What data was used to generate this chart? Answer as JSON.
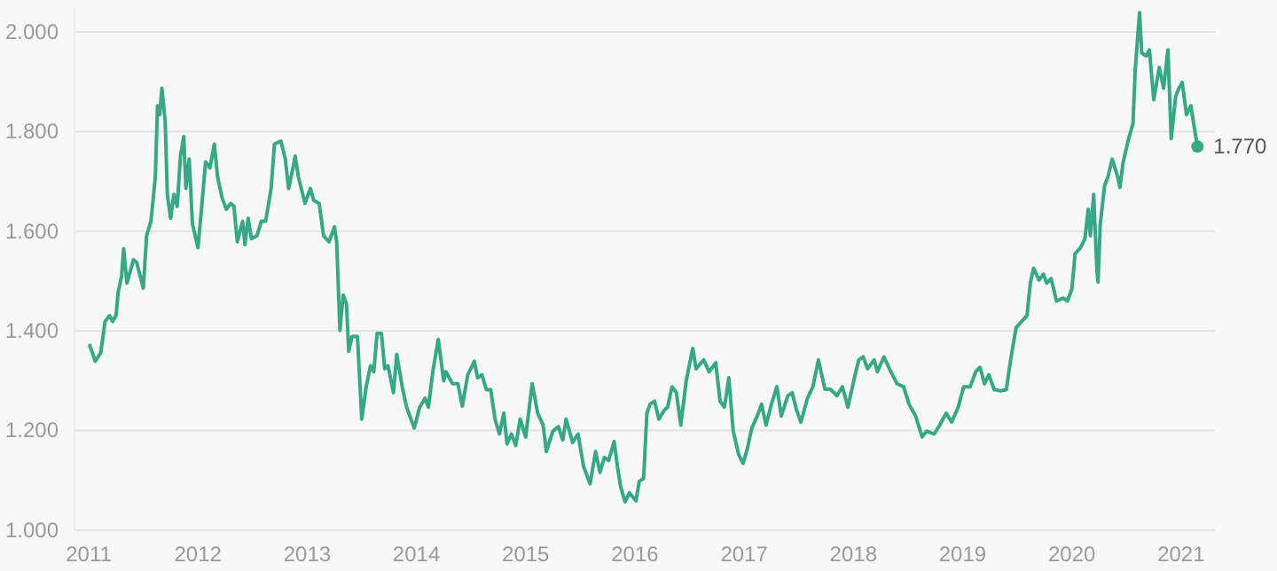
{
  "chart_data": {
    "type": "line",
    "color": "#35a985",
    "grid": "y",
    "marker": "none",
    "line_style": "solid",
    "xlim": [
      2010.87,
      2021.31
    ],
    "xticks": [
      2011,
      2012,
      2013,
      2014,
      2015,
      2016,
      2017,
      2018,
      2019,
      2020,
      2021
    ],
    "ylim": [
      1,
      2.05
    ],
    "yticks": [
      {
        "value": 1,
        "label": "1.000"
      },
      {
        "value": 1.2,
        "label": "1.200"
      },
      {
        "value": 1.4,
        "label": "1.400"
      },
      {
        "value": 1.6,
        "label": "1.600"
      },
      {
        "value": 1.8,
        "label": "1.800"
      },
      {
        "value": 2,
        "label": "2.000"
      }
    ],
    "annotations": [
      {
        "text": "1.770",
        "x": 2021.15,
        "y": 1.77
      }
    ],
    "x": [
      2011.01,
      2011.06,
      2011.11,
      2011.15,
      2011.19,
      2011.22,
      2011.25,
      2011.27,
      2011.3,
      2011.32,
      2011.35,
      2011.41,
      2011.44,
      2011.5,
      2011.53,
      2011.57,
      2011.61,
      2011.63,
      2011.65,
      2011.67,
      2011.7,
      2011.72,
      2011.75,
      2011.78,
      2011.81,
      2011.84,
      2011.87,
      2011.89,
      2011.92,
      2011.95,
      2011.97,
      2012.0,
      2012.03,
      2012.07,
      2012.11,
      2012.15,
      2012.18,
      2012.22,
      2012.26,
      2012.3,
      2012.33,
      2012.36,
      2012.41,
      2012.43,
      2012.46,
      2012.49,
      2012.54,
      2012.58,
      2012.62,
      2012.67,
      2012.7,
      2012.76,
      2012.8,
      2012.83,
      2012.87,
      2012.89,
      2012.92,
      2012.98,
      2013.03,
      2013.06,
      2013.11,
      2013.15,
      2013.2,
      2013.25,
      2013.27,
      2013.3,
      2013.33,
      2013.36,
      2013.38,
      2013.41,
      2013.46,
      2013.5,
      2013.54,
      2013.58,
      2013.61,
      2013.64,
      2013.68,
      2013.71,
      2013.74,
      2013.79,
      2013.82,
      2013.87,
      2013.91,
      2013.98,
      2014.03,
      2014.08,
      2014.11,
      2014.15,
      2014.2,
      2014.25,
      2014.27,
      2014.33,
      2014.38,
      2014.42,
      2014.47,
      2014.53,
      2014.56,
      2014.6,
      2014.64,
      2014.68,
      2014.72,
      2014.76,
      2014.8,
      2014.83,
      2014.87,
      2014.91,
      2014.95,
      2015.0,
      2015.06,
      2015.11,
      2015.16,
      2015.19,
      2015.25,
      2015.3,
      2015.34,
      2015.37,
      2015.43,
      2015.48,
      2015.53,
      2015.59,
      2015.64,
      2015.68,
      2015.72,
      2015.76,
      2015.81,
      2015.84,
      2015.87,
      2015.91,
      2015.95,
      2016.01,
      2016.04,
      2016.08,
      2016.11,
      2016.14,
      2016.18,
      2016.22,
      2016.27,
      2016.3,
      2016.34,
      2016.38,
      2016.42,
      2016.47,
      2016.53,
      2016.56,
      2016.63,
      2016.68,
      2016.74,
      2016.78,
      2016.82,
      2016.86,
      2016.9,
      2016.95,
      2016.99,
      2017.03,
      2017.07,
      2017.12,
      2017.16,
      2017.2,
      2017.25,
      2017.3,
      2017.34,
      2017.4,
      2017.44,
      2017.48,
      2017.52,
      2017.58,
      2017.63,
      2017.68,
      2017.74,
      2017.79,
      2017.85,
      2017.9,
      2017.95,
      2018.01,
      2018.05,
      2018.09,
      2018.13,
      2018.19,
      2018.22,
      2018.28,
      2018.33,
      2018.4,
      2018.46,
      2018.51,
      2018.57,
      2018.63,
      2018.67,
      2018.74,
      2018.79,
      2018.85,
      2018.9,
      2018.96,
      2019.01,
      2019.07,
      2019.12,
      2019.16,
      2019.2,
      2019.24,
      2019.29,
      2019.35,
      2019.4,
      2019.44,
      2019.49,
      2019.54,
      2019.59,
      2019.62,
      2019.65,
      2019.7,
      2019.74,
      2019.77,
      2019.81,
      2019.86,
      2019.92,
      2019.96,
      2020.0,
      2020.03,
      2020.08,
      2020.12,
      2020.15,
      2020.17,
      2020.2,
      2020.23,
      2020.24,
      2020.26,
      2020.3,
      2020.33,
      2020.37,
      2020.42,
      2020.44,
      2020.47,
      2020.52,
      2020.56,
      2020.58,
      2020.62,
      2020.64,
      2020.68,
      2020.71,
      2020.75,
      2020.8,
      2020.84,
      2020.88,
      2020.91,
      2020.95,
      2020.98,
      2021.01,
      2021.05,
      2021.09,
      2021.12,
      2021.15
    ],
    "values": [
      1.371,
      1.339,
      1.356,
      1.419,
      1.431,
      1.419,
      1.431,
      1.478,
      1.508,
      1.565,
      1.496,
      1.543,
      1.537,
      1.486,
      1.591,
      1.62,
      1.709,
      1.852,
      1.834,
      1.887,
      1.822,
      1.674,
      1.626,
      1.674,
      1.65,
      1.751,
      1.79,
      1.686,
      1.745,
      1.614,
      1.596,
      1.567,
      1.638,
      1.739,
      1.727,
      1.775,
      1.709,
      1.668,
      1.644,
      1.656,
      1.65,
      1.579,
      1.62,
      1.573,
      1.626,
      1.585,
      1.591,
      1.62,
      1.62,
      1.686,
      1.775,
      1.781,
      1.745,
      1.686,
      1.727,
      1.751,
      1.709,
      1.656,
      1.686,
      1.662,
      1.656,
      1.591,
      1.579,
      1.609,
      1.579,
      1.401,
      1.472,
      1.454,
      1.359,
      1.389,
      1.389,
      1.223,
      1.288,
      1.33,
      1.318,
      1.395,
      1.395,
      1.324,
      1.33,
      1.276,
      1.353,
      1.288,
      1.247,
      1.205,
      1.247,
      1.265,
      1.247,
      1.318,
      1.383,
      1.3,
      1.318,
      1.294,
      1.294,
      1.249,
      1.312,
      1.339,
      1.306,
      1.312,
      1.282,
      1.282,
      1.223,
      1.193,
      1.235,
      1.173,
      1.193,
      1.17,
      1.223,
      1.187,
      1.294,
      1.235,
      1.211,
      1.158,
      1.199,
      1.208,
      1.181,
      1.223,
      1.176,
      1.193,
      1.128,
      1.093,
      1.158,
      1.116,
      1.146,
      1.14,
      1.178,
      1.128,
      1.087,
      1.057,
      1.075,
      1.059,
      1.098,
      1.104,
      1.235,
      1.253,
      1.259,
      1.223,
      1.241,
      1.247,
      1.288,
      1.276,
      1.211,
      1.3,
      1.365,
      1.324,
      1.342,
      1.318,
      1.336,
      1.259,
      1.247,
      1.306,
      1.199,
      1.152,
      1.134,
      1.164,
      1.205,
      1.229,
      1.253,
      1.211,
      1.253,
      1.288,
      1.229,
      1.27,
      1.276,
      1.241,
      1.217,
      1.265,
      1.288,
      1.342,
      1.283,
      1.283,
      1.27,
      1.288,
      1.247,
      1.306,
      1.342,
      1.348,
      1.324,
      1.342,
      1.318,
      1.348,
      1.324,
      1.294,
      1.288,
      1.253,
      1.229,
      1.187,
      1.199,
      1.193,
      1.211,
      1.235,
      1.217,
      1.247,
      1.288,
      1.288,
      1.318,
      1.327,
      1.294,
      1.312,
      1.282,
      1.28,
      1.282,
      1.342,
      1.407,
      1.419,
      1.431,
      1.496,
      1.526,
      1.502,
      1.514,
      1.496,
      1.505,
      1.46,
      1.466,
      1.46,
      1.484,
      1.555,
      1.567,
      1.585,
      1.644,
      1.591,
      1.674,
      1.52,
      1.498,
      1.614,
      1.692,
      1.709,
      1.745,
      1.709,
      1.688,
      1.739,
      1.786,
      1.816,
      1.923,
      2.039,
      1.958,
      1.952,
      1.964,
      1.864,
      1.929,
      1.887,
      1.964,
      1.786,
      1.87,
      1.887,
      1.899,
      1.834,
      1.852,
      1.81,
      1.77
    ]
  }
}
